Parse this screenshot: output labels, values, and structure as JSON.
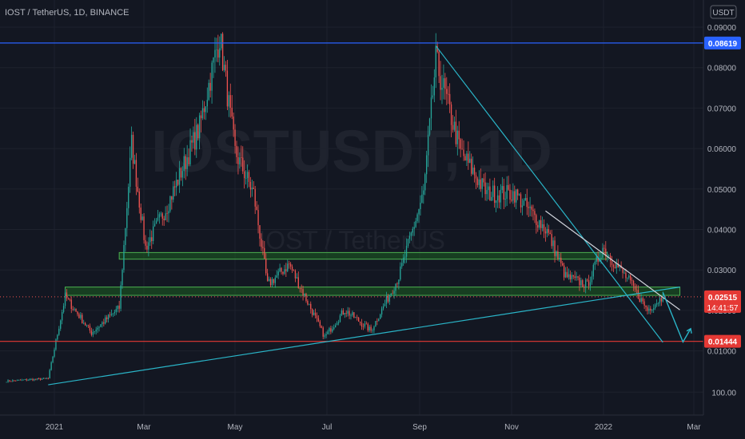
{
  "header": {
    "symbol_title": "IOST / TetherUS, 1D, BINANCE"
  },
  "axis": {
    "currency_label": "USDT"
  },
  "watermark": {
    "ticker": "IOSTUSDT, 1D",
    "pair": "IOST / TetherUS"
  },
  "colors": {
    "background": "#131722",
    "bull": "#26a69a",
    "bear": "#ef5350",
    "trendline": "#2ab5c8",
    "resistance_line": "#d1d4dc",
    "top_line": "#2962ff",
    "support_line": "#e53935",
    "zone_fill": "#1b5e20",
    "zone_stroke": "#4caf50"
  },
  "chart_data": {
    "type": "candlestick",
    "title": "IOST / TetherUS, 1D, BINANCE",
    "x_ticks": [
      "2021",
      "Mar",
      "May",
      "Jul",
      "Sep",
      "Nov",
      "2022",
      "Mar"
    ],
    "y_ticks": [
      "0.09000",
      "0.08000",
      "0.07000",
      "0.06000",
      "0.05000",
      "0.04000",
      "0.03000",
      "0.02000",
      "0.01000",
      "100.00"
    ],
    "ylim": [
      0,
      0.093
    ],
    "price_labels": [
      {
        "value": 0.08619,
        "text": "0.08619",
        "kind": "top"
      },
      {
        "value": 0.02515,
        "text": "0.02515",
        "countdown": "14:41:57",
        "kind": "last"
      },
      {
        "value": 0.01444,
        "text": "0.01444",
        "kind": "support"
      }
    ],
    "key_closes": [
      {
        "date": "2020-12-01",
        "price": 0.0049
      },
      {
        "date": "2020-12-28",
        "price": 0.0055
      },
      {
        "date": "2021-01-08",
        "price": 0.0252
      },
      {
        "date": "2021-01-25",
        "price": 0.0165
      },
      {
        "date": "2021-02-12",
        "price": 0.0225
      },
      {
        "date": "2021-02-20",
        "price": 0.062
      },
      {
        "date": "2021-03-01",
        "price": 0.037
      },
      {
        "date": "2021-03-15",
        "price": 0.047
      },
      {
        "date": "2021-04-05",
        "price": 0.066
      },
      {
        "date": "2021-04-18",
        "price": 0.088
      },
      {
        "date": "2021-04-28",
        "price": 0.06
      },
      {
        "date": "2021-05-10",
        "price": 0.05
      },
      {
        "date": "2021-05-19",
        "price": 0.028
      },
      {
        "date": "2021-06-02",
        "price": 0.033
      },
      {
        "date": "2021-06-25",
        "price": 0.0155
      },
      {
        "date": "2021-07-08",
        "price": 0.022
      },
      {
        "date": "2021-07-25",
        "price": 0.017
      },
      {
        "date": "2021-08-12",
        "price": 0.03
      },
      {
        "date": "2021-08-28",
        "price": 0.05
      },
      {
        "date": "2021-09-05",
        "price": 0.082
      },
      {
        "date": "2021-09-21",
        "price": 0.06
      },
      {
        "date": "2021-10-08",
        "price": 0.05
      },
      {
        "date": "2021-10-26",
        "price": 0.05
      },
      {
        "date": "2021-11-16",
        "price": 0.041
      },
      {
        "date": "2021-11-28",
        "price": 0.03
      },
      {
        "date": "2021-12-12",
        "price": 0.028
      },
      {
        "date": "2021-12-22",
        "price": 0.037
      },
      {
        "date": "2022-01-08",
        "price": 0.029
      },
      {
        "date": "2022-01-20",
        "price": 0.022
      },
      {
        "date": "2022-01-30",
        "price": 0.0252
      }
    ],
    "annotations": {
      "zones": [
        {
          "from": "2021-02-12",
          "to": "2021-12-25",
          "low": 0.0342,
          "high": 0.0358
        },
        {
          "from": "2021-01-08",
          "to": "2022-02-10",
          "low": 0.0255,
          "high": 0.0275
        }
      ],
      "horizontal_lines": [
        {
          "price": 0.08619,
          "kind": "top"
        },
        {
          "price": 0.01444,
          "kind": "support"
        }
      ],
      "trendlines": [
        {
          "from": {
            "date": "2020-12-28",
            "price": 0.004
          },
          "to": {
            "date": "2022-02-10",
            "price": 0.0275
          },
          "kind": "ascending-support"
        },
        {
          "from": {
            "date": "2021-09-05",
            "price": 0.0855
          },
          "to": {
            "date": "2022-01-30",
            "price": 0.0142
          },
          "kind": "descending"
        },
        {
          "from": {
            "date": "2021-11-15",
            "price": 0.0458
          },
          "to": {
            "date": "2022-02-10",
            "price": 0.022
          },
          "kind": "descending-resistance"
        }
      ],
      "projection_arrow": [
        {
          "date": "2022-01-30",
          "price": 0.0262
        },
        {
          "date": "2022-02-12",
          "price": 0.0143
        },
        {
          "date": "2022-02-17",
          "price": 0.0175
        }
      ]
    }
  }
}
